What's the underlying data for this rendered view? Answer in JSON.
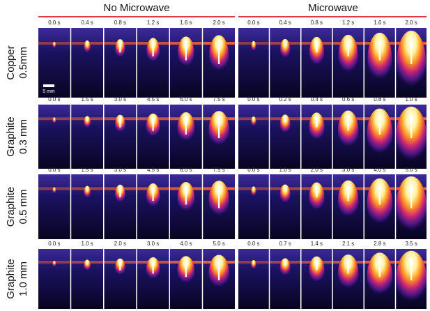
{
  "columns": [
    "No Microwave",
    "Microwave"
  ],
  "scale_bar": "5 mm",
  "rows": [
    {
      "label": [
        "Copper",
        "0.5mm"
      ],
      "no_microwave_times": [
        "0.0 s",
        "0.4 s",
        "0.8 s",
        "1.2 s",
        "1.6 s",
        "2.0 s"
      ],
      "microwave_times": [
        "0.0 s",
        "0.4 s",
        "0.8 s",
        "1.2 s",
        "1.6 s",
        "2.0 s"
      ]
    },
    {
      "label": [
        "Graphite",
        "0.3 mm"
      ],
      "no_microwave_times": [
        "0.0 s",
        "1.5 s",
        "3.0 s",
        "4.5 s",
        "6.0 s",
        "7.5 s"
      ],
      "microwave_times": [
        "0.0 s",
        "0.2 s",
        "0.4 s",
        "0.6 s",
        "0.8 s",
        "1.0 s"
      ]
    },
    {
      "label": [
        "Graphite",
        "0.5 mm"
      ],
      "no_microwave_times": [
        "0.0 s",
        "1.5 s",
        "3.0 s",
        "4.5 s",
        "6.0 s",
        "7.5 s"
      ],
      "microwave_times": [
        "0.0 s",
        "1.0 s",
        "2.0 s",
        "3.0 s",
        "4.0 s",
        "5.0 s"
      ]
    },
    {
      "label": [
        "Graphite",
        "1.0 mm"
      ],
      "no_microwave_times": [
        "0.0 s",
        "1.0 s",
        "2.0 s",
        "3.0 s",
        "4.0 s",
        "5.0 s"
      ],
      "microwave_times": [
        "0.0 s",
        "0.7 s",
        "1.4 s",
        "2.1 s",
        "2.8 s",
        "3.5 s"
      ]
    }
  ]
}
